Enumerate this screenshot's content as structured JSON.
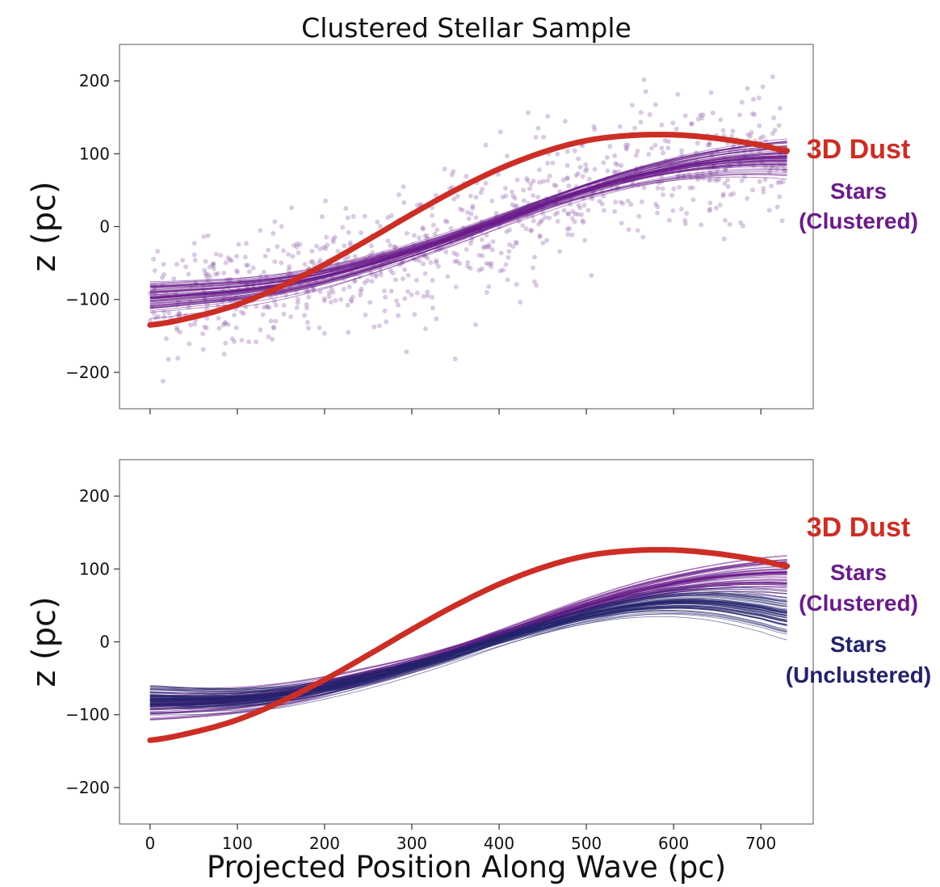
{
  "colors": {
    "dust": "#cc2e25",
    "clustered": "#6a1b8a",
    "unclustered": "#23236b",
    "scatter": "#8e5aa8",
    "axis": "#333333"
  },
  "chart_data": [
    {
      "type": "line",
      "title": "Clustered Stellar Sample",
      "xlabel": "",
      "ylabel": "z (pc)",
      "xlim": [
        -35,
        760
      ],
      "ylim": [
        -250,
        250
      ],
      "xticks": [
        0,
        100,
        200,
        300,
        400,
        500,
        600,
        700
      ],
      "yticks": [
        -200,
        -100,
        0,
        100,
        200
      ],
      "ytick_labels": [
        "−200",
        "−100",
        "0",
        "100",
        "200"
      ],
      "show_x_tick_labels": false,
      "grid": false,
      "x": [
        0,
        50,
        100,
        150,
        200,
        250,
        300,
        350,
        400,
        450,
        500,
        550,
        600,
        650,
        700,
        730
      ],
      "series": [
        {
          "name": "3D Dust",
          "color_key": "dust",
          "values": [
            -135,
            -124,
            -107,
            -82,
            -52,
            -18,
            17,
            50,
            79,
            102,
            118,
            125,
            126,
            121,
            112,
            104
          ]
        },
        {
          "name": "Stars (Clustered)",
          "color_key": "clustered",
          "ensemble": true,
          "values": [
            -97,
            -93,
            -88,
            -80,
            -68,
            -52,
            -34,
            -14,
            8,
            30,
            50,
            67,
            80,
            89,
            94,
            95
          ]
        }
      ],
      "scatter": {
        "name": "Stars (Clustered)",
        "n_points": 900,
        "trend": "clustered",
        "spread": 42
      },
      "labels": [
        {
          "text": "3D Dust",
          "color_key": "dust",
          "size": 34
        },
        {
          "text": "Stars",
          "color_key": "clustered",
          "size": 28
        },
        {
          "text": "(Clustered)",
          "color_key": "clustered",
          "size": 28
        }
      ]
    },
    {
      "type": "line",
      "title": "",
      "xlabel": "Projected Position Along Wave (pc)",
      "ylabel": "z (pc)",
      "xlim": [
        -35,
        760
      ],
      "ylim": [
        -250,
        250
      ],
      "xticks": [
        0,
        100,
        200,
        300,
        400,
        500,
        600,
        700
      ],
      "xtick_labels": [
        "0",
        "100",
        "200",
        "300",
        "400",
        "500",
        "600",
        "700"
      ],
      "yticks": [
        -200,
        -100,
        0,
        100,
        200
      ],
      "ytick_labels": [
        "−200",
        "−100",
        "0",
        "100",
        "200"
      ],
      "show_x_tick_labels": true,
      "grid": false,
      "x": [
        0,
        50,
        100,
        150,
        200,
        250,
        300,
        350,
        400,
        450,
        500,
        550,
        600,
        650,
        700,
        730
      ],
      "series": [
        {
          "name": "3D Dust",
          "color_key": "dust",
          "values": [
            -135,
            -124,
            -107,
            -82,
            -52,
            -18,
            17,
            50,
            79,
            102,
            118,
            125,
            126,
            121,
            112,
            104
          ]
        },
        {
          "name": "Stars (Clustered)",
          "color_key": "clustered",
          "ensemble": true,
          "values": [
            -88,
            -86,
            -82,
            -74,
            -62,
            -47,
            -31,
            -12,
            9,
            30,
            50,
            67,
            80,
            89,
            94,
            95
          ]
        },
        {
          "name": "Stars (Unclustered)",
          "color_key": "unclustered",
          "ensemble": true,
          "values": [
            -78,
            -79,
            -78,
            -73,
            -63,
            -50,
            -34,
            -16,
            4,
            22,
            38,
            50,
            56,
            55,
            47,
            40
          ]
        }
      ],
      "labels": [
        {
          "text": "3D Dust",
          "color_key": "dust",
          "size": 34
        },
        {
          "text": "Stars",
          "color_key": "clustered",
          "size": 28
        },
        {
          "text": "(Clustered)",
          "color_key": "clustered",
          "size": 28
        },
        {
          "text": "Stars",
          "color_key": "unclustered",
          "size": 28
        },
        {
          "text": "(Unclustered)",
          "color_key": "unclustered",
          "size": 28
        }
      ]
    }
  ]
}
